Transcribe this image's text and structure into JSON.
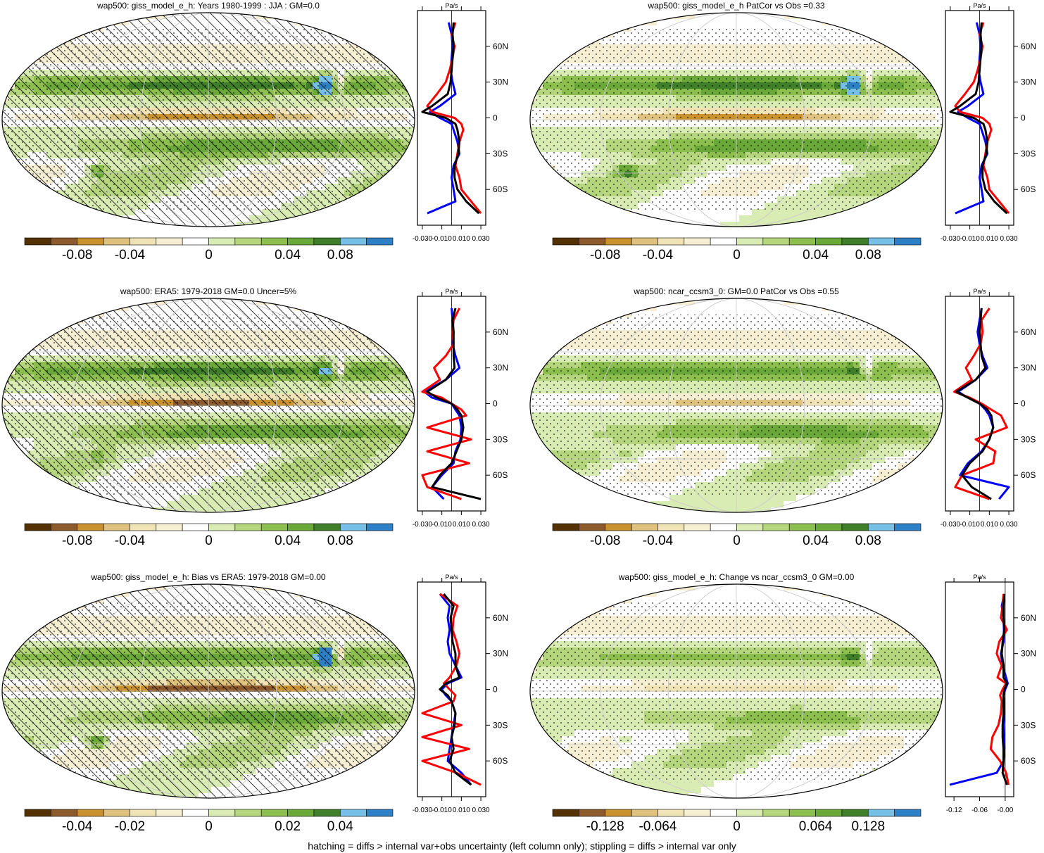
{
  "footer": "hatching = diffs > internal var+obs uncertainty (left column only); stippling = diffs > internal var only",
  "colors": {
    "brown_dark": "#543005",
    "brown": "#8c5a2b",
    "gold": "#c9922e",
    "tan": "#dfc27d",
    "beige": "#f0e3b5",
    "cream": "#f6efd4",
    "white": "#ffffff",
    "pale_green": "#d9ecb4",
    "light_green": "#b5d67d",
    "green": "#8cbf4e",
    "mid_green": "#6aa83a",
    "dark_green": "#3f7f2a",
    "light_blue": "#76c0e8",
    "blue": "#2d7fc6",
    "zonal_model": "#0000ff",
    "zonal_obs": "#ff0000",
    "zonal_mmm": "#000000"
  },
  "panels": [
    {
      "title": "wap500: giss_model_e_h: Years 1980-1999 : JJA : GM=0.0",
      "colorbar_labels": [
        "-0.08",
        "-0.04",
        "0",
        "0.04",
        "0.08"
      ],
      "zonal": {
        "unit": "Pa/s",
        "x_labels": [
          "-0.030",
          "-0.010",
          "0.010",
          "0.030"
        ],
        "lat_labels": [
          "60N",
          "30N",
          "0",
          "30S",
          "60S"
        ]
      }
    },
    {
      "title": "wap500: giss_model_e_h PatCor vs Obs =0.33",
      "colorbar_labels": [
        "-0.08",
        "-0.04",
        "0",
        "0.04",
        "0.08"
      ],
      "zonal": {
        "unit": "Pa/s",
        "x_labels": [
          "-0.030",
          "-0.010",
          "0.010",
          "0.030"
        ],
        "lat_labels": [
          "60N",
          "30N",
          "0",
          "30S",
          "60S"
        ]
      }
    },
    {
      "title": "wap500: ERA5: 1979-2018 GM=0.0 Uncer=5%",
      "colorbar_labels": [
        "-0.08",
        "-0.04",
        "0",
        "0.04",
        "0.08"
      ],
      "zonal": {
        "unit": "Pa/s",
        "x_labels": [
          "-0.030",
          "-0.010",
          "0.010",
          "0.030"
        ],
        "lat_labels": [
          "60N",
          "30N",
          "0",
          "30S",
          "60S"
        ]
      }
    },
    {
      "title": "wap500: ncar_ccsm3_0: GM=0.0 PatCor vs Obs =0.55",
      "colorbar_labels": [
        "-0.08",
        "-0.04",
        "0",
        "0.04",
        "0.08"
      ],
      "zonal": {
        "unit": "Pa/s",
        "x_labels": [
          "-0.030",
          "-0.010",
          "0.010",
          "0.030"
        ],
        "lat_labels": [
          "60N",
          "30N",
          "0",
          "30S",
          "60S"
        ]
      }
    },
    {
      "title": "wap500: giss_model_e_h: Bias vs ERA5: 1979-2018 GM=0.00",
      "colorbar_labels": [
        "-0.04",
        "-0.02",
        "0",
        "0.02",
        "0.04"
      ],
      "zonal": {
        "unit": "Pa/s",
        "x_labels": [
          "-0.030",
          "-0.010",
          "0.010",
          "0.030"
        ],
        "lat_labels": [
          "60N",
          "30N",
          "0",
          "30S",
          "60S"
        ]
      }
    },
    {
      "title": "wap500: giss_model_e_h: Change vs ncar_ccsm3_0 GM=0.00",
      "colorbar_labels": [
        "-0.128",
        "-0.064",
        "0",
        "0.064",
        "0.128"
      ],
      "zonal": {
        "unit": "Pa/s",
        "x_labels": [
          "-0.12",
          "-0.06",
          "-0.00"
        ],
        "lat_labels": [
          "60N",
          "30N",
          "0",
          "30S",
          "60S"
        ]
      }
    }
  ],
  "chart_data": [
    {
      "type": "heatmap",
      "title": "wap500: giss_model_e_h: Years 1980-1999 : JJA : GM=0.0",
      "colorbar_ticks": [
        -0.08,
        -0.04,
        0,
        0.04,
        0.08
      ],
      "zonal_mean": {
        "type": "line",
        "xlim": [
          -0.035,
          0.035
        ],
        "x_ticks": [
          -0.03,
          -0.01,
          0.01,
          0.03
        ],
        "lat": [
          80,
          70,
          60,
          50,
          40,
          30,
          20,
          10,
          5,
          0,
          -5,
          -10,
          -20,
          -30,
          -40,
          -50,
          -60,
          -70,
          -80
        ],
        "series": [
          {
            "color": "blue",
            "values": [
              -0.003,
              0.0,
              0.001,
              0.0,
              -0.001,
              0.001,
              0.004,
              -0.012,
              -0.022,
              -0.012,
              0.0,
              0.002,
              0.006,
              0.008,
              0.002,
              0.0,
              0.002,
              0.004,
              -0.025
            ]
          },
          {
            "color": "red",
            "values": [
              0.004,
              0.0,
              0.003,
              0.001,
              -0.002,
              -0.006,
              -0.015,
              -0.025,
              -0.02,
              0.003,
              0.01,
              0.012,
              0.008,
              0.006,
              0.004,
              0.008,
              0.01,
              0.02,
              0.03
            ]
          },
          {
            "color": "black",
            "values": [
              0.002,
              0.001,
              0.002,
              0.001,
              0.0,
              -0.001,
              -0.004,
              -0.02,
              -0.03,
              -0.006,
              0.004,
              0.006,
              0.008,
              0.007,
              0.003,
              0.003,
              0.006,
              0.015,
              0.028
            ]
          }
        ]
      }
    },
    {
      "type": "heatmap",
      "title": "wap500: giss_model_e_h PatCor vs Obs =0.33",
      "colorbar_ticks": [
        -0.08,
        -0.04,
        0,
        0.04,
        0.08
      ],
      "zonal_mean": {
        "type": "line",
        "xlim": [
          -0.035,
          0.035
        ],
        "x_ticks": [
          -0.03,
          -0.01,
          0.01,
          0.03
        ],
        "lat": [
          80,
          70,
          60,
          50,
          40,
          30,
          20,
          10,
          5,
          0,
          -5,
          -10,
          -20,
          -30,
          -40,
          -50,
          -60,
          -70,
          -80
        ],
        "series": [
          {
            "color": "blue",
            "values": [
              -0.003,
              0.0,
              0.001,
              0.0,
              -0.001,
              0.001,
              0.004,
              -0.012,
              -0.022,
              -0.012,
              0.0,
              0.002,
              0.006,
              0.008,
              0.002,
              0.0,
              0.002,
              0.004,
              -0.025
            ]
          },
          {
            "color": "red",
            "values": [
              0.004,
              0.0,
              0.003,
              0.001,
              -0.002,
              -0.006,
              -0.015,
              -0.025,
              -0.02,
              0.003,
              0.01,
              0.012,
              0.008,
              0.006,
              0.004,
              0.008,
              0.01,
              0.02,
              0.03
            ]
          },
          {
            "color": "black",
            "values": [
              0.002,
              0.001,
              0.002,
              0.001,
              0.0,
              -0.001,
              -0.004,
              -0.02,
              -0.03,
              -0.006,
              0.004,
              0.006,
              0.008,
              0.007,
              0.003,
              0.003,
              0.006,
              0.015,
              0.028
            ]
          }
        ]
      }
    },
    {
      "type": "heatmap",
      "title": "wap500: ERA5: 1979-2018 GM=0.0 Uncer=5%",
      "colorbar_ticks": [
        -0.08,
        -0.04,
        0,
        0.04,
        0.08
      ],
      "zonal_mean": {
        "type": "line",
        "xlim": [
          -0.035,
          0.035
        ],
        "x_ticks": [
          -0.03,
          -0.01,
          0.01,
          0.03
        ],
        "lat": [
          80,
          70,
          60,
          50,
          40,
          30,
          20,
          10,
          5,
          0,
          -5,
          -10,
          -20,
          -30,
          -40,
          -50,
          -60,
          -70,
          -80
        ],
        "series": [
          {
            "color": "blue",
            "values": [
              0.0,
              0.001,
              0.002,
              0.001,
              0.004,
              0.008,
              -0.006,
              -0.028,
              -0.02,
              0.0,
              0.004,
              0.008,
              0.01,
              0.009,
              0.004,
              0.002,
              -0.01,
              -0.02,
              -0.008
            ]
          },
          {
            "color": "red",
            "values": [
              0.008,
              0.002,
              0.001,
              0.002,
              -0.006,
              -0.018,
              -0.012,
              -0.03,
              -0.01,
              0.0,
              0.01,
              0.015,
              -0.025,
              0.02,
              -0.025,
              0.018,
              -0.03,
              -0.025,
              0.01
            ]
          },
          {
            "color": "black",
            "values": [
              0.004,
              0.001,
              0.002,
              0.002,
              0.002,
              0.003,
              -0.006,
              -0.025,
              -0.015,
              0.0,
              0.006,
              0.01,
              0.012,
              0.01,
              0.005,
              0.0,
              -0.012,
              -0.02,
              0.03
            ]
          }
        ]
      }
    },
    {
      "type": "heatmap",
      "title": "wap500: ncar_ccsm3_0: GM=0.0 PatCor vs Obs =0.55",
      "colorbar_ticks": [
        -0.08,
        -0.04,
        0,
        0.04,
        0.08
      ],
      "zonal_mean": {
        "type": "line",
        "xlim": [
          -0.035,
          0.035
        ],
        "x_ticks": [
          -0.03,
          -0.01,
          0.01,
          0.03
        ],
        "lat": [
          80,
          70,
          60,
          50,
          40,
          30,
          20,
          10,
          5,
          0,
          -5,
          -10,
          -20,
          -30,
          -40,
          -50,
          -60,
          -70,
          -80
        ],
        "series": [
          {
            "color": "blue",
            "values": [
              0.002,
              0.0,
              -0.002,
              0.0,
              0.003,
              0.008,
              -0.004,
              -0.022,
              -0.012,
              0.0,
              0.006,
              0.01,
              0.014,
              0.01,
              0.002,
              -0.012,
              -0.02,
              0.03,
              0.02
            ]
          },
          {
            "color": "red",
            "values": [
              0.01,
              0.002,
              0.003,
              0.001,
              -0.006,
              -0.014,
              -0.008,
              -0.026,
              -0.01,
              0.002,
              0.012,
              0.022,
              0.028,
              -0.004,
              0.016,
              0.014,
              -0.018,
              -0.025,
              0.01
            ]
          },
          {
            "color": "black",
            "values": [
              0.002,
              0.001,
              0.0,
              0.001,
              0.002,
              0.006,
              -0.004,
              -0.024,
              -0.012,
              0.0,
              0.008,
              0.012,
              0.014,
              0.01,
              0.003,
              -0.01,
              -0.018,
              -0.008,
              0.012
            ]
          }
        ]
      }
    },
    {
      "type": "heatmap",
      "title": "wap500: giss_model_e_h: Bias vs ERA5: 1979-2018 GM=0.00",
      "colorbar_ticks": [
        -0.04,
        -0.02,
        0,
        0.02,
        0.04
      ],
      "zonal_mean": {
        "type": "line",
        "xlim": [
          -0.035,
          0.035
        ],
        "x_ticks": [
          -0.03,
          -0.01,
          0.01,
          0.03
        ],
        "lat": [
          80,
          70,
          60,
          50,
          40,
          30,
          20,
          10,
          5,
          0,
          -5,
          -10,
          -20,
          -30,
          -40,
          -50,
          -60,
          -70,
          -80
        ],
        "series": [
          {
            "color": "blue",
            "values": [
              -0.012,
              -0.002,
              -0.004,
              -0.002,
              -0.004,
              -0.002,
              0.004,
              0.01,
              -0.004,
              -0.01,
              -0.006,
              0.0,
              0.004,
              0.002,
              0.0,
              -0.002,
              -0.004,
              0.01,
              0.02
            ]
          },
          {
            "color": "red",
            "values": [
              -0.012,
              0.006,
              0.002,
              0.001,
              0.005,
              0.008,
              0.005,
              -0.002,
              -0.008,
              -0.002,
              0.004,
              0.002,
              -0.03,
              0.01,
              -0.03,
              0.018,
              -0.03,
              0.005,
              0.03
            ]
          },
          {
            "color": "black",
            "values": [
              -0.008,
              0.002,
              -0.001,
              0.0,
              0.001,
              0.004,
              0.004,
              0.008,
              -0.006,
              -0.012,
              -0.004,
              0.0,
              0.004,
              0.003,
              0.0,
              0.002,
              -0.002,
              0.004,
              0.02
            ]
          }
        ]
      }
    },
    {
      "type": "heatmap",
      "title": "wap500: giss_model_e_h: Change vs ncar_ccsm3_0 GM=0.00",
      "colorbar_ticks": [
        -0.128,
        -0.064,
        0,
        0.064,
        0.128
      ],
      "zonal_mean": {
        "type": "line",
        "xlim": [
          -0.14,
          0.02
        ],
        "x_ticks": [
          -0.12,
          -0.06,
          -0.0
        ],
        "lat": [
          80,
          70,
          60,
          50,
          40,
          30,
          20,
          10,
          5,
          0,
          -5,
          -10,
          -20,
          -30,
          -40,
          -50,
          -60,
          -70,
          -80
        ],
        "series": [
          {
            "color": "blue",
            "values": [
              -0.002,
              -0.008,
              -0.004,
              -0.003,
              -0.004,
              -0.01,
              -0.006,
              0.002,
              0.006,
              0.0,
              -0.004,
              -0.003,
              -0.002,
              -0.004,
              -0.003,
              -0.002,
              -0.004,
              -0.02,
              -0.13
            ]
          },
          {
            "color": "red",
            "values": [
              -0.004,
              -0.006,
              -0.01,
              0.004,
              -0.014,
              -0.02,
              -0.008,
              -0.018,
              0.002,
              -0.006,
              -0.012,
              -0.008,
              -0.01,
              -0.016,
              -0.03,
              -0.034,
              -0.012,
              0.002,
              0.008
            ]
          },
          {
            "color": "black",
            "values": [
              -0.002,
              -0.004,
              -0.004,
              -0.002,
              -0.006,
              -0.008,
              -0.004,
              -0.004,
              0.004,
              -0.002,
              -0.004,
              -0.004,
              -0.004,
              -0.006,
              -0.006,
              -0.004,
              -0.004,
              -0.006,
              0.004
            ]
          }
        ]
      }
    }
  ]
}
